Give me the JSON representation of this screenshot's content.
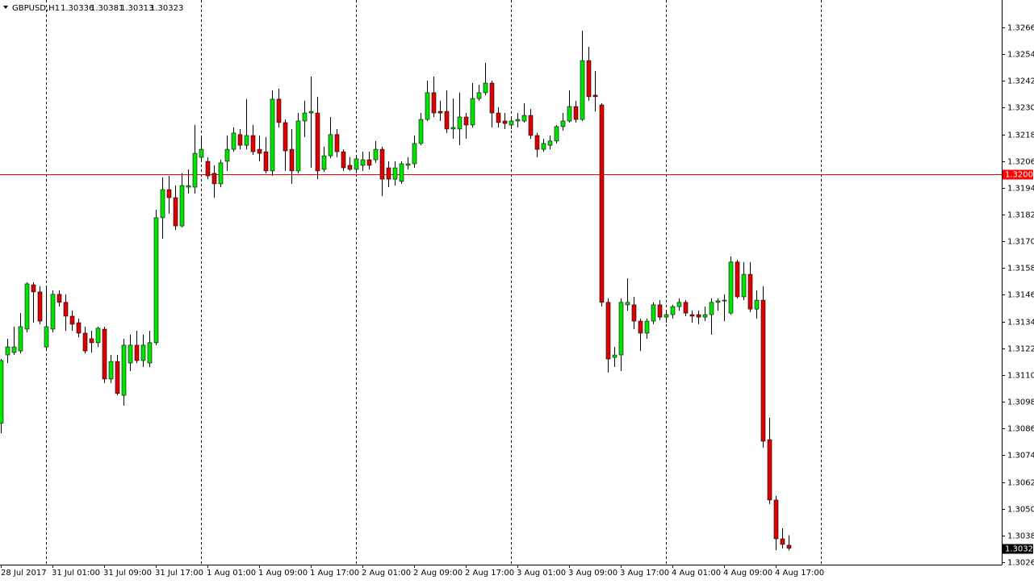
{
  "chart_data": {
    "type": "candlestick",
    "title": "GBPUSD,H1",
    "categories": [
      "28 Jul 2017",
      null,
      null,
      null,
      null,
      null,
      null,
      null,
      "31 Jul 01:00",
      null,
      null,
      null,
      null,
      null,
      null,
      null,
      "31 Jul 09:00",
      null,
      null,
      null,
      null,
      null,
      null,
      null,
      "31 Jul 17:00",
      null,
      null,
      null,
      null,
      null,
      null,
      null,
      "1 Aug 01:00",
      null,
      null,
      null,
      null,
      null,
      null,
      null,
      "1 Aug 09:00",
      null,
      null,
      null,
      null,
      null,
      null,
      null,
      "1 Aug 17:00",
      null,
      null,
      null,
      null,
      null,
      null,
      null,
      "2 Aug 01:00",
      null,
      null,
      null,
      null,
      null,
      null,
      null,
      "2 Aug 09:00",
      null,
      null,
      null,
      null,
      null,
      null,
      null,
      "2 Aug 17:00",
      null,
      null,
      null,
      null,
      null,
      null,
      null,
      "3 Aug 01:00",
      null,
      null,
      null,
      null,
      null,
      null,
      null,
      "3 Aug 09:00",
      null,
      null,
      null,
      null,
      null,
      null,
      null,
      "3 Aug 17:00",
      null,
      null,
      null,
      null,
      null,
      null,
      null,
      "4 Aug 01:00",
      null,
      null,
      null,
      null,
      null,
      null,
      null,
      "4 Aug 09:00",
      null,
      null,
      null,
      null,
      null,
      null,
      null,
      "4 Aug 17:00",
      null,
      null
    ],
    "series": [
      {
        "up_color": "#00e600",
        "down_color": "#e00000",
        "open": [
          1.30883,
          1.3119,
          1.31201,
          1.31208,
          1.31306,
          1.31505,
          1.31473,
          1.31226,
          1.31306,
          1.31462,
          1.31426,
          1.31364,
          1.31335,
          1.31288,
          1.31263,
          1.31245,
          1.31306,
          1.31082,
          1.31161,
          1.31009,
          1.31154,
          1.31234,
          1.31165,
          1.31154,
          1.31245,
          1.31806,
          1.31932,
          1.31896,
          1.31769,
          1.31943,
          1.31943,
          1.32077,
          1.32059,
          1.32005,
          1.31958,
          1.32059,
          1.32113,
          1.32179,
          1.32131,
          1.32175,
          1.32113,
          1.32102,
          1.32016,
          1.32338,
          1.32233,
          1.32113,
          1.32016,
          1.3224,
          1.32276,
          1.32276,
          1.32023,
          1.32084,
          1.32179,
          1.32102,
          1.32041,
          1.32023,
          1.32041,
          1.32066,
          1.32066,
          1.32113,
          1.3203,
          1.31979,
          1.31969,
          1.32041,
          1.32048,
          1.32139,
          1.32247,
          1.32367,
          1.32283,
          1.32283,
          1.32204,
          1.32204,
          1.32258,
          1.32222,
          1.32341,
          1.32367,
          1.3241,
          1.32276,
          1.3224,
          1.32222,
          1.3224,
          1.3224,
          1.32265,
          1.32175,
          1.32113,
          1.32131,
          1.3215,
          1.32215,
          1.3224,
          1.32305,
          1.32247,
          1.32511,
          1.32356,
          1.32312,
          1.31426,
          1.31179,
          1.3119,
          1.31415,
          1.31415,
          1.31342,
          1.31288,
          1.31342,
          1.31415,
          1.3136,
          1.31371,
          1.31407,
          1.31426,
          1.31371,
          1.31371,
          1.3136,
          1.31371,
          1.31426,
          1.31433,
          1.31378,
          1.31607,
          1.31451,
          1.31552,
          1.31396,
          1.31436,
          1.3081,
          1.30539,
          1.30365,
          1.30336
        ],
        "high": [
          1.31172,
          1.31263,
          1.31317,
          1.31378,
          1.31516,
          1.31516,
          1.31498,
          1.31498,
          1.3148,
          1.3148,
          1.31462,
          1.31389,
          1.31353,
          1.31317,
          1.31299,
          1.31317,
          1.31317,
          1.3119,
          1.3119,
          1.31263,
          1.31281,
          1.31299,
          1.31281,
          1.31299,
          1.31842,
          1.31987,
          1.31994,
          1.3195,
          1.32005,
          1.32023,
          1.32222,
          1.32168,
          1.32077,
          1.32041,
          1.32066,
          1.32175,
          1.32211,
          1.32204,
          1.32338,
          1.32222,
          1.32175,
          1.32168,
          1.32378,
          1.32385,
          1.32247,
          1.32204,
          1.32276,
          1.32331,
          1.32439,
          1.32349,
          1.32124,
          1.32258,
          1.32204,
          1.32113,
          1.32077,
          1.32077,
          1.32102,
          1.32102,
          1.3215,
          1.32124,
          1.32059,
          1.32059,
          1.32059,
          1.32077,
          1.32175,
          1.32276,
          1.32421,
          1.32439,
          1.32331,
          1.32378,
          1.32341,
          1.32367,
          1.32276,
          1.3241,
          1.32403,
          1.32501,
          1.32421,
          1.32302,
          1.32276,
          1.32258,
          1.32276,
          1.3232,
          1.32294,
          1.32186,
          1.3216,
          1.32175,
          1.32222,
          1.32276,
          1.32378,
          1.32331,
          1.32645,
          1.32573,
          1.32464,
          1.3232,
          1.31444,
          1.31226,
          1.31444,
          1.31534,
          1.31451,
          1.31353,
          1.31353,
          1.31426,
          1.31436,
          1.31389,
          1.31415,
          1.31444,
          1.31436,
          1.31389,
          1.31389,
          1.31407,
          1.31444,
          1.31444,
          1.31462,
          1.31632,
          1.31617,
          1.31607,
          1.31607,
          1.3148,
          1.31498,
          1.30908,
          1.30557,
          1.30412,
          1.30381
        ],
        "low": [
          1.30839,
          1.31154,
          1.3119,
          1.31197,
          1.31291,
          1.31335,
          1.31328,
          1.31208,
          1.31291,
          1.31407,
          1.31299,
          1.31299,
          1.3127,
          1.31197,
          1.31201,
          1.31226,
          1.31064,
          1.31064,
          1.31009,
          1.30962,
          1.31118,
          1.31154,
          1.31136,
          1.31136,
          1.31234,
          1.31712,
          1.31824,
          1.31751,
          1.31762,
          1.31914,
          1.31914,
          1.32059,
          1.31979,
          1.31896,
          1.31943,
          1.32016,
          1.32102,
          1.32113,
          1.32113,
          1.32088,
          1.32059,
          1.32005,
          1.31994,
          1.32211,
          1.32016,
          1.31958,
          1.32005,
          1.32168,
          1.3203,
          1.31979,
          1.32012,
          1.32073,
          1.32077,
          1.32016,
          1.32016,
          1.32005,
          1.32016,
          1.32023,
          1.32052,
          1.31903,
          1.31943,
          1.3195,
          1.31958,
          1.32023,
          1.3203,
          1.32131,
          1.3224,
          1.32258,
          1.3224,
          1.32186,
          1.3216,
          1.32131,
          1.3216,
          1.32211,
          1.32331,
          1.32356,
          1.32211,
          1.32211,
          1.32204,
          1.32204,
          1.32211,
          1.32233,
          1.3216,
          1.32077,
          1.32102,
          1.32113,
          1.32139,
          1.32197,
          1.32233,
          1.32233,
          1.3224,
          1.32331,
          1.32283,
          1.31407,
          1.31111,
          1.31136,
          1.31118,
          1.31389,
          1.31306,
          1.31208,
          1.31263,
          1.31328,
          1.31346,
          1.31335,
          1.31353,
          1.31389,
          1.31364,
          1.31335,
          1.31328,
          1.31342,
          1.31281,
          1.31389,
          1.31342,
          1.31371,
          1.31444,
          1.31436,
          1.31382,
          1.31353,
          1.30774,
          1.30521,
          1.30314,
          1.30322,
          1.30313
        ],
        "close": [
          1.31165,
          1.31226,
          1.31226,
          1.31317,
          1.31509,
          1.31473,
          1.31342,
          1.31317,
          1.31462,
          1.31426,
          1.31364,
          1.31328,
          1.31288,
          1.31208,
          1.31245,
          1.3131,
          1.31082,
          1.31161,
          1.31017,
          1.31234,
          1.31234,
          1.31165,
          1.31234,
          1.31245,
          1.31806,
          1.31932,
          1.31896,
          1.31769,
          1.3195,
          1.3195,
          1.32095,
          1.32113,
          1.31994,
          1.31958,
          1.32052,
          1.32113,
          1.32186,
          1.32131,
          1.32175,
          1.32102,
          1.32095,
          1.32016,
          1.32338,
          1.32233,
          1.32106,
          1.32016,
          1.3224,
          1.32276,
          1.32283,
          1.32016,
          1.32084,
          1.32179,
          1.32102,
          1.3203,
          1.32023,
          1.3207,
          1.32066,
          1.32041,
          1.32113,
          1.31979,
          1.31979,
          1.3203,
          1.32048,
          1.32048,
          1.32139,
          1.32247,
          1.32367,
          1.32276,
          1.32276,
          1.32204,
          1.32211,
          1.32258,
          1.32222,
          1.32341,
          1.32367,
          1.3241,
          1.32276,
          1.32233,
          1.32229,
          1.3224,
          1.32247,
          1.32265,
          1.32175,
          1.32113,
          1.32139,
          1.3215,
          1.32215,
          1.3224,
          1.32305,
          1.32247,
          1.32511,
          1.32349,
          1.32349,
          1.31426,
          1.31172,
          1.3119,
          1.31426,
          1.31426,
          1.31342,
          1.31288,
          1.31342,
          1.31415,
          1.3136,
          1.31371,
          1.31407,
          1.31426,
          1.31378,
          1.31364,
          1.3136,
          1.31371,
          1.31426,
          1.31433,
          1.31436,
          1.31607,
          1.31451,
          1.31552,
          1.31396,
          1.31436,
          1.30803,
          1.30539,
          1.30365,
          1.3034,
          1.30323
        ]
      }
    ],
    "ylim": [
      1.30249,
      1.32783
    ],
    "yticks": [
      {
        "value": 1.3266,
        "label": "1.32660"
      },
      {
        "value": 1.3254,
        "label": "1.32540"
      },
      {
        "value": 1.3242,
        "label": "1.32420"
      },
      {
        "value": 1.323,
        "label": "1.32300"
      },
      {
        "value": 1.3218,
        "label": "1.32180"
      },
      {
        "value": 1.3206,
        "label": "1.32060"
      },
      {
        "value": 1.3194,
        "label": "1.31940"
      },
      {
        "value": 1.3182,
        "label": "1.31820"
      },
      {
        "value": 1.317,
        "label": "1.31700"
      },
      {
        "value": 1.3158,
        "label": "1.31580"
      },
      {
        "value": 1.3146,
        "label": "1.31460"
      },
      {
        "value": 1.3134,
        "label": "1.31340"
      },
      {
        "value": 1.3122,
        "label": "1.31220"
      },
      {
        "value": 1.311,
        "label": "1.31100"
      },
      {
        "value": 1.3098,
        "label": "1.30980"
      },
      {
        "value": 1.3086,
        "label": "1.30860"
      },
      {
        "value": 1.3074,
        "label": "1.30740"
      },
      {
        "value": 1.3062,
        "label": "1.30620"
      },
      {
        "value": 1.305,
        "label": "1.30500"
      },
      {
        "value": 1.3038,
        "label": "1.30380"
      },
      {
        "value": 1.3026,
        "label": "1.30260"
      }
    ],
    "hline": {
      "value": 1.32,
      "label": "1.32000",
      "color": "#ff0000"
    },
    "grid": false
  }
}
